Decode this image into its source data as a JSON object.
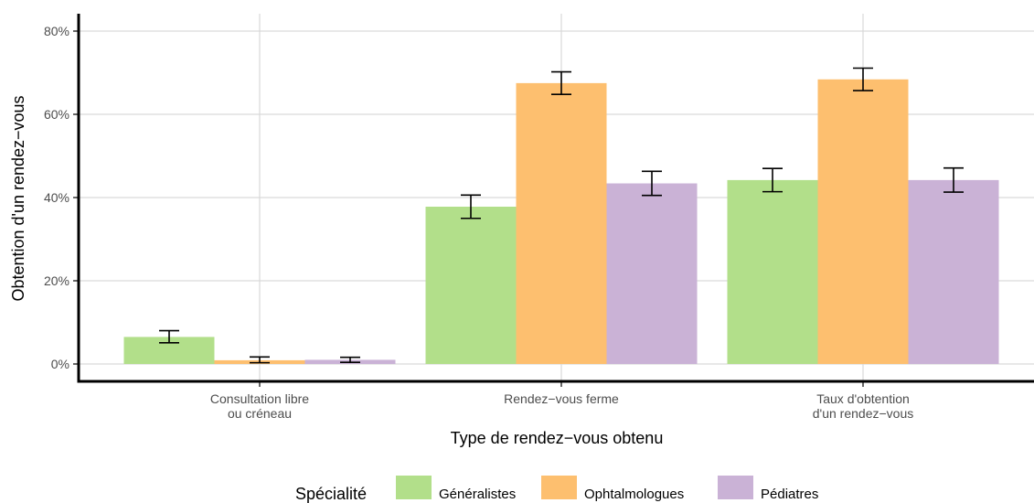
{
  "chart_data": {
    "type": "bar",
    "xlabel": "Type de rendez−vous obtenu",
    "ylabel": "Obtention d'un rendez−vous",
    "ylim": [
      0,
      80
    ],
    "yticks": [
      0,
      20,
      40,
      60,
      80
    ],
    "ytick_labels": [
      "0%",
      "20%",
      "40%",
      "60%",
      "80%"
    ],
    "grid": true,
    "legend_position": "bottom",
    "categories": [
      [
        "Consultation libre",
        "ou créneau"
      ],
      [
        "Rendez−vous ferme"
      ],
      [
        "Taux d'obtention",
        "d'un rendez−vous"
      ]
    ],
    "legend_title": "Spécialité",
    "series": [
      {
        "name": "Généralistes",
        "color": "#b2df8a",
        "values": [
          6.5,
          37.8,
          44.2
        ],
        "err_low": [
          5.1,
          35.0,
          41.4
        ],
        "err_high": [
          8.0,
          40.6,
          47.0
        ]
      },
      {
        "name": "Ophtalmologues",
        "color": "#fdbf6f",
        "values": [
          0.9,
          67.5,
          68.4
        ],
        "err_low": [
          0.3,
          64.8,
          65.7
        ],
        "err_high": [
          1.7,
          70.2,
          71.1
        ]
      },
      {
        "name": "Pédiatres",
        "color": "#cab2d6",
        "values": [
          1.0,
          43.4,
          44.2
        ],
        "err_low": [
          0.4,
          40.5,
          41.3
        ],
        "err_high": [
          1.6,
          46.3,
          47.1
        ]
      }
    ]
  }
}
